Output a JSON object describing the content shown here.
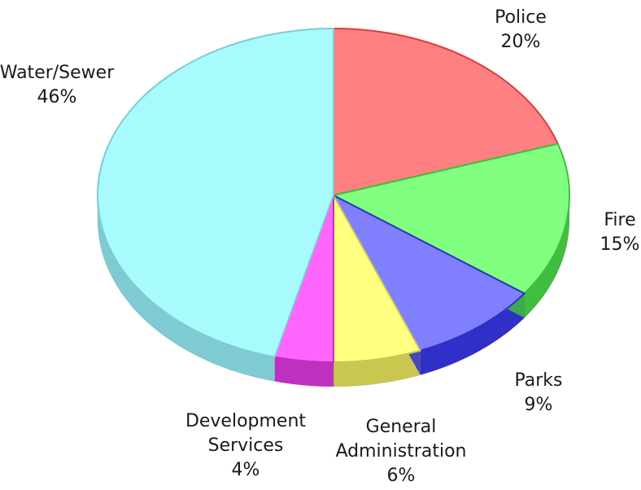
{
  "chart_data": {
    "type": "pie",
    "style": "3d-exploded",
    "categories": [
      "Police",
      "Fire",
      "Parks",
      "General Administration",
      "Development Services",
      "Water/Sewer"
    ],
    "values": [
      20,
      15,
      9,
      6,
      4,
      46
    ],
    "labels": [
      {
        "lines": [
          "Police"
        ],
        "pct": "20%"
      },
      {
        "lines": [
          "Fire"
        ],
        "pct": "15%"
      },
      {
        "lines": [
          "Parks"
        ],
        "pct": "9%"
      },
      {
        "lines": [
          "General",
          "Administration"
        ],
        "pct": "6%"
      },
      {
        "lines": [
          "Development",
          "Services"
        ],
        "pct": "4%"
      },
      {
        "lines": [
          "Water/Sewer"
        ],
        "pct": "46%"
      }
    ],
    "colors": {
      "top": [
        "#ff8080",
        "#80ff80",
        "#8080ff",
        "#ffff80",
        "#ff66ff",
        "#a8fbfd"
      ],
      "side": [
        "#e13a3a",
        "#3fbe3f",
        "#3030c8",
        "#c8c850",
        "#c030c0",
        "#7fcbd2"
      ]
    }
  }
}
